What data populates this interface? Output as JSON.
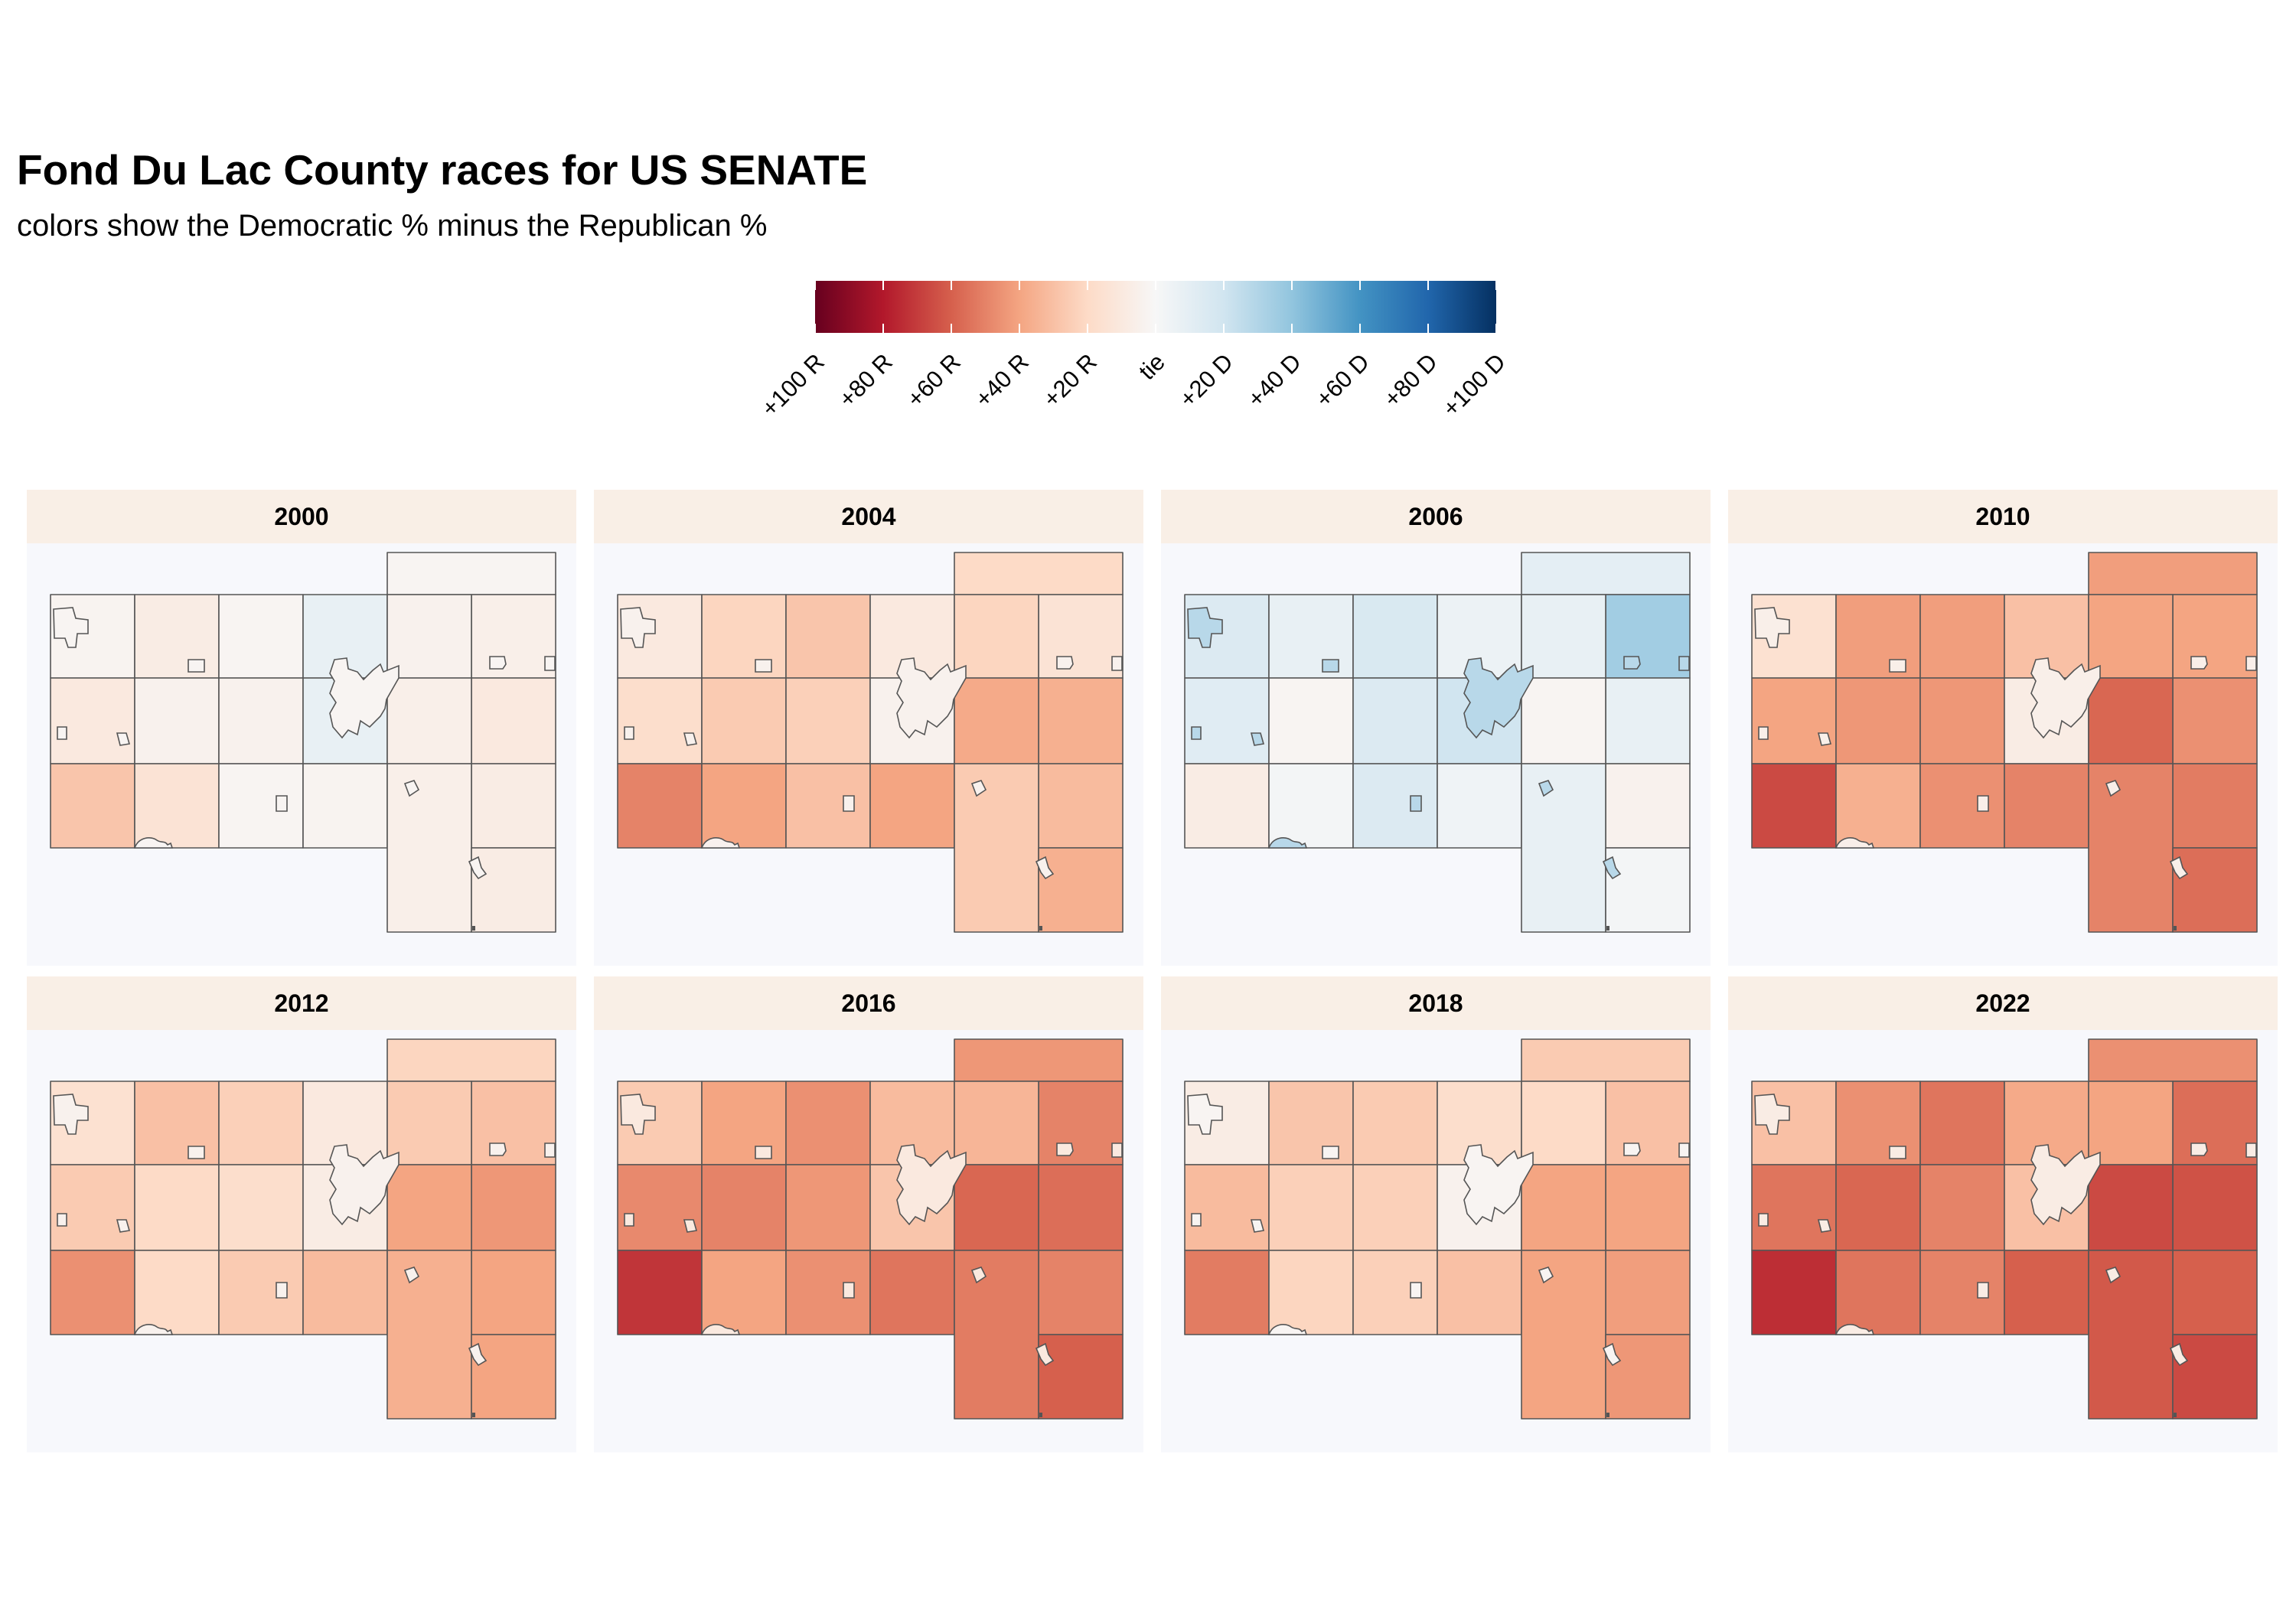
{
  "title": "Fond Du Lac County races for US SENATE",
  "subtitle": "colors show the Democratic % minus the Republican %",
  "legend": {
    "ticks": [
      "+100 R",
      "+80 R",
      "+60 R",
      "+40 R",
      "+20 R",
      "tie",
      "+20 D",
      "+40 D",
      "+60 D",
      "+80 D",
      "+100 D"
    ],
    "values": [
      -100,
      -80,
      -60,
      -40,
      -20,
      0,
      20,
      40,
      60,
      80,
      100
    ],
    "colors": [
      "#67001f",
      "#b2182b",
      "#d6604d",
      "#f4a582",
      "#fddbc7",
      "#f7f7f7",
      "#d1e5f0",
      "#92c5de",
      "#4393c3",
      "#2166ac",
      "#053061"
    ]
  },
  "chart_data": {
    "type": "choropleth",
    "measure": "Democratic % minus Republican %",
    "cell_order": "township grid, north-west to south-east; last row/column entries beyond the county outline are unused",
    "panels": [
      {
        "year": "2000",
        "city": -2,
        "values": [
          -3,
          -8,
          -2,
          8,
          -2,
          -6,
          -10,
          -4,
          -4,
          8,
          -4,
          -10,
          -28,
          -14,
          -2,
          -3,
          -6,
          -8,
          -6,
          -8
        ]
      },
      {
        "year": "2004",
        "city": -4,
        "values": [
          -10,
          -22,
          -28,
          -10,
          -20,
          -14,
          -18,
          -26,
          -24,
          -4,
          -22,
          -36,
          -50,
          -40,
          -30,
          -40,
          -38,
          -32,
          -26,
          -36
        ]
      },
      {
        "year": "2006",
        "city": 28,
        "values": [
          14,
          8,
          16,
          6,
          10,
          35,
          12,
          -2,
          14,
          20,
          8,
          8,
          -8,
          2,
          14,
          4,
          -2,
          -4,
          8,
          2
        ]
      },
      {
        "year": "2010",
        "city": -6,
        "values": [
          -16,
          -42,
          -42,
          -30,
          -42,
          -40,
          -40,
          -44,
          -44,
          -8,
          -40,
          -46,
          -66,
          -36,
          -46,
          -50,
          -58,
          -52,
          -50,
          -56
        ]
      },
      {
        "year": "2012",
        "city": -4,
        "values": [
          -16,
          -30,
          -24,
          -10,
          -22,
          -30,
          -26,
          -20,
          -18,
          -8,
          -26,
          -44,
          -46,
          -20,
          -26,
          -32,
          -40,
          -40,
          -36,
          -40
        ]
      },
      {
        "year": "2016",
        "city": -10,
        "values": [
          -26,
          -40,
          -46,
          -32,
          -44,
          -50,
          -48,
          -50,
          -44,
          -28,
          -34,
          -56,
          -72,
          -40,
          -46,
          -54,
          -58,
          -50,
          -52,
          -60
        ]
      },
      {
        "year": "2018",
        "city": -2,
        "values": [
          -8,
          -28,
          -26,
          -18,
          -26,
          -30,
          -32,
          -24,
          -24,
          -4,
          -20,
          -40,
          -52,
          -22,
          -24,
          -30,
          -40,
          -42,
          -40,
          -44
        ]
      },
      {
        "year": "2022",
        "city": -8,
        "values": [
          -30,
          -46,
          -54,
          -38,
          -46,
          -56,
          -54,
          -58,
          -50,
          -30,
          -40,
          -64,
          -74,
          -54,
          -50,
          -60,
          -66,
          -60,
          -62,
          -66
        ]
      }
    ]
  }
}
